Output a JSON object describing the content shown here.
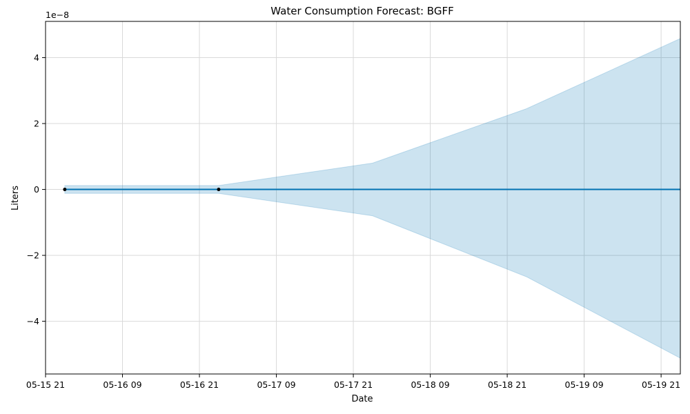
{
  "chart_data": {
    "type": "line",
    "title": "Water Consumption Forecast: BGFF",
    "xlabel": "Date",
    "ylabel": "Liters",
    "y_offset_label": "1e−8",
    "grid": true,
    "colors": {
      "forecast_line": "#0072b2",
      "band_fill": "#0072b2",
      "observed_points": "#000000",
      "grid": "#d9d9d9"
    },
    "x_ticks": [
      "05-15 21",
      "05-16 09",
      "05-16 21",
      "05-17 09",
      "05-17 21",
      "05-18 09",
      "05-18 21",
      "05-19 09",
      "05-19 21"
    ],
    "x_tick_values": [
      "2024-05-15T21:00",
      "2024-05-16T09:00",
      "2024-05-16T21:00",
      "2024-05-17T09:00",
      "2024-05-17T21:00",
      "2024-05-18T09:00",
      "2024-05-18T21:00",
      "2024-05-19T09:00",
      "2024-05-19T21:00"
    ],
    "xlim": [
      "2024-05-15T21:00",
      "2024-05-20T00:00"
    ],
    "y_ticks": [
      4,
      2,
      0,
      -2,
      -4
    ],
    "y_tick_labels": [
      "4",
      "2",
      "0",
      "−2",
      "−4"
    ],
    "ylim": [
      -5.6,
      5.1
    ],
    "x": [
      "2024-05-16T00:00",
      "2024-05-17T00:00",
      "2024-05-18T00:00",
      "2024-05-19T00:00",
      "2024-05-20T00:00"
    ],
    "series": [
      {
        "values": [
          0,
          0,
          0,
          0,
          0
        ]
      }
    ],
    "band_upper": [
      0.12,
      0.12,
      0.8,
      2.45,
      4.58
    ],
    "band_lower": [
      -0.12,
      -0.12,
      -0.8,
      -2.65,
      -5.12
    ],
    "observed": {
      "x": [
        "2024-05-16T00:00",
        "2024-05-17T00:00"
      ],
      "values": [
        0,
        0
      ]
    }
  }
}
